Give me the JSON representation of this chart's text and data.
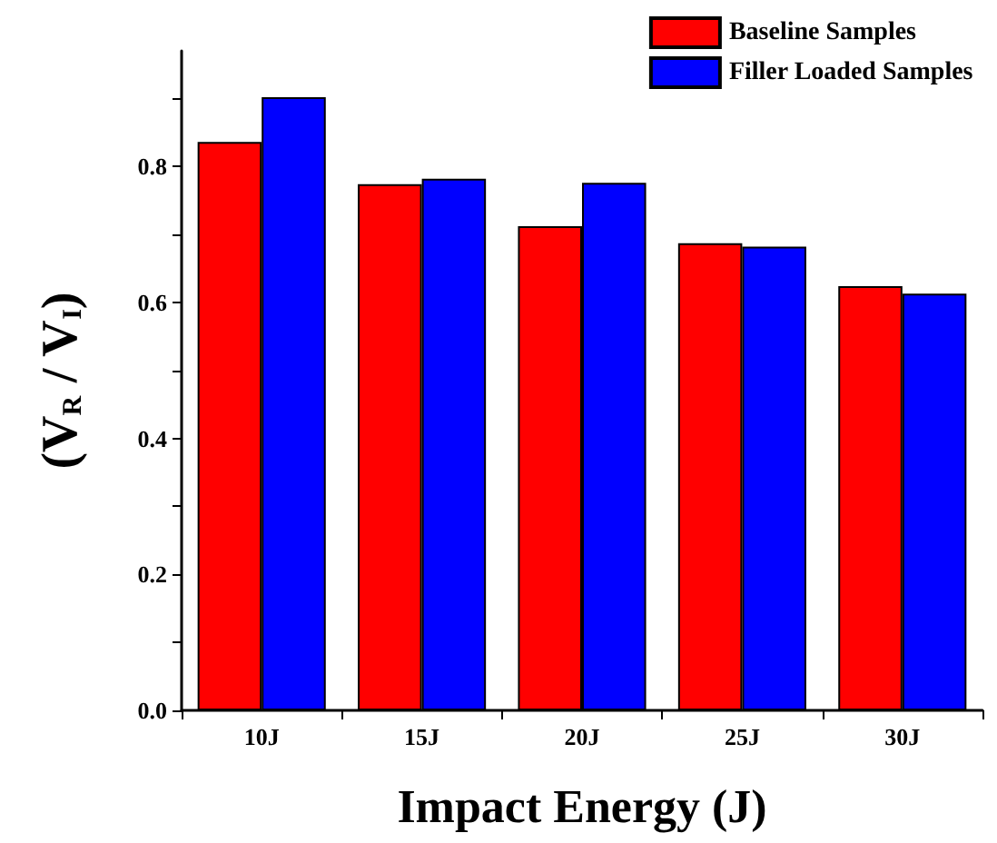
{
  "chart_data": {
    "type": "bar",
    "xlabel": "Impact Energy (J)",
    "ylabel": "(V$_{R}$ / V$_{I}$)",
    "categories": [
      "10J",
      "15J",
      "20J",
      "25J",
      "30J"
    ],
    "series": [
      {
        "name": "Baseline Samples",
        "color": "#ff0000",
        "values": [
          0.836,
          0.774,
          0.712,
          0.687,
          0.624
        ]
      },
      {
        "name": "Filler Loaded Samples",
        "color": "#0000ff",
        "values": [
          0.902,
          0.782,
          0.776,
          0.682,
          0.613
        ]
      }
    ],
    "ylim": [
      0,
      0.97
    ],
    "yticks": [
      {
        "value": 0,
        "label": "0.0"
      },
      {
        "value": 0.1,
        "label": null
      },
      {
        "value": 0.2,
        "label": "0.2"
      },
      {
        "value": 0.3,
        "label": null
      },
      {
        "value": 0.4,
        "label": "0.4"
      },
      {
        "value": 0.5,
        "label": null
      },
      {
        "value": 0.6,
        "label": "0.6"
      },
      {
        "value": 0.7,
        "label": null
      },
      {
        "value": 0.8,
        "label": "0.8"
      },
      {
        "value": 0.9,
        "label": null
      }
    ],
    "grid": false,
    "legend": "top right"
  }
}
